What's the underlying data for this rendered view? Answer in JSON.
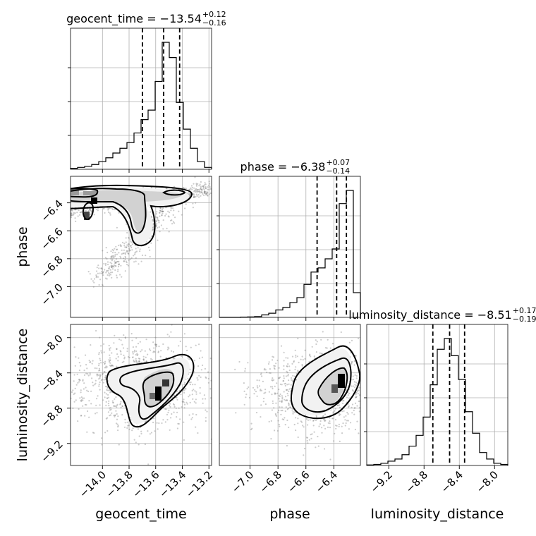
{
  "chart_data": {
    "type": "corner",
    "parameters": [
      "geocent_time",
      "phase",
      "luminosity_distance"
    ],
    "ranges": {
      "geocent_time": [
        -14.24,
        -13.18
      ],
      "phase": [
        -7.22,
        -6.21
      ],
      "luminosity_distance": [
        -9.45,
        -7.85
      ]
    },
    "ticks": {
      "geocent_time": [
        "−14.0",
        "−13.8",
        "−13.6",
        "−13.4",
        "−13.2"
      ],
      "phase": [
        "−7.0",
        "−6.8",
        "−6.6",
        "−6.4"
      ],
      "luminosity_distance": [
        "−9.2",
        "−8.8",
        "−8.4",
        "−8.0"
      ]
    },
    "tick_values": {
      "geocent_time": [
        -14.0,
        -13.8,
        -13.6,
        -13.4,
        -13.2
      ],
      "phase": [
        -7.0,
        -6.8,
        -6.6,
        -6.4
      ],
      "luminosity_distance": [
        -9.2,
        -8.8,
        -8.4,
        -8.0
      ]
    },
    "titles": {
      "geocent_time": {
        "label": "geocent_time = −13.54",
        "sup": "+0.12",
        "sub": "−0.16"
      },
      "phase": {
        "label": "phase = −6.38",
        "sup": "+0.07",
        "sub": "−0.14"
      },
      "luminosity_distance": {
        "label": "luminosity_distance = −8.51",
        "sup": "+0.17",
        "sub": "−0.19"
      }
    },
    "quantiles": {
      "geocent_time": [
        -13.7,
        -13.54,
        -13.42
      ],
      "phase": [
        -6.52,
        -6.38,
        -6.31
      ],
      "luminosity_distance": [
        -8.7,
        -8.51,
        -8.34
      ]
    },
    "histograms": {
      "geocent_time": {
        "edges": [
          -14.24,
          -14.187,
          -14.134,
          -14.081,
          -14.028,
          -13.975,
          -13.922,
          -13.869,
          -13.816,
          -13.763,
          -13.71,
          -13.657,
          -13.604,
          -13.551,
          -13.498,
          -13.445,
          -13.392,
          -13.339,
          -13.286,
          -13.233,
          -13.18
        ],
        "counts": [
          1,
          2,
          3,
          5,
          8,
          12,
          17,
          22,
          28,
          38,
          52,
          62,
          92,
          133,
          117,
          70,
          42,
          22,
          8,
          2
        ]
      },
      "phase": {
        "edges": [
          -7.22,
          -7.1695,
          -7.119,
          -7.0685,
          -7.018,
          -6.9675,
          -6.917,
          -6.8665,
          -6.816,
          -6.7655,
          -6.715,
          -6.6645,
          -6.614,
          -6.5635,
          -6.513,
          -6.4625,
          -6.412,
          -6.3615,
          -6.311,
          -6.2605,
          -6.21
        ],
        "counts": [
          0,
          0,
          0,
          0.3,
          0.6,
          1,
          3,
          5,
          9,
          12,
          18,
          24,
          40,
          55,
          60,
          71,
          83,
          138,
          154,
          30
        ]
      },
      "luminosity_distance": {
        "edges": [
          -9.45,
          -9.37,
          -9.29,
          -9.21,
          -9.13,
          -9.05,
          -8.97,
          -8.89,
          -8.81,
          -8.73,
          -8.65,
          -8.57,
          -8.49,
          -8.41,
          -8.33,
          -8.25,
          -8.17,
          -8.09,
          -8.01,
          -7.93,
          -7.85
        ],
        "counts": [
          0.5,
          1,
          2,
          4,
          6,
          10,
          18,
          28,
          45,
          75,
          108,
          118,
          102,
          80,
          50,
          30,
          12,
          6,
          2,
          1
        ]
      }
    },
    "axis_labels": {
      "x": [
        "geocent_time",
        "phase",
        "luminosity_distance"
      ],
      "y": [
        "phase",
        "luminosity_distance"
      ]
    }
  }
}
